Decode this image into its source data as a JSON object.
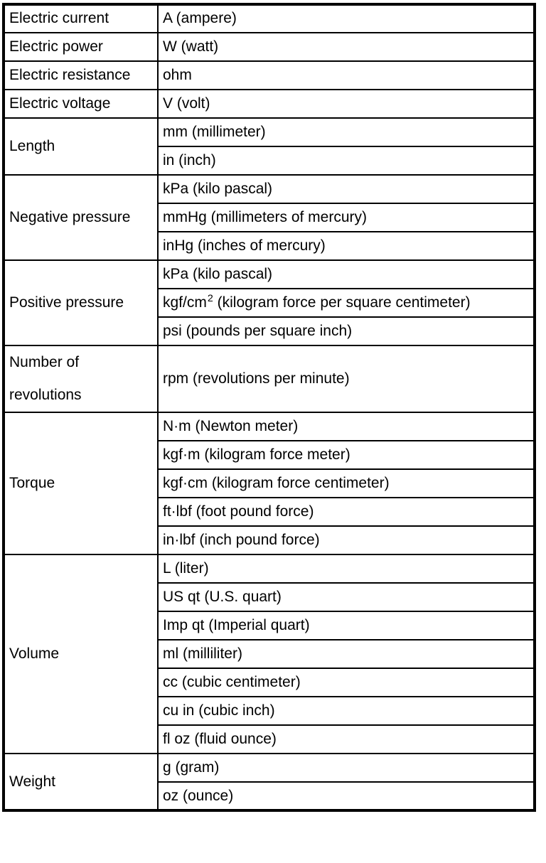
{
  "colors": {
    "background": "#ffffff",
    "text": "#000000",
    "border": "#000000"
  },
  "table": {
    "categories": [
      {
        "label": "Electric current",
        "units": [
          {
            "text": "A (ampere)"
          }
        ]
      },
      {
        "label": "Electric power",
        "units": [
          {
            "text": "W (watt)"
          }
        ]
      },
      {
        "label": "Electric resistance",
        "units": [
          {
            "text": "ohm"
          }
        ]
      },
      {
        "label": "Electric voltage",
        "units": [
          {
            "text": "V (volt)"
          }
        ]
      },
      {
        "label": "Length",
        "units": [
          {
            "text": "mm (millimeter)"
          },
          {
            "text": "in (inch)"
          }
        ]
      },
      {
        "label": "Negative pressure",
        "units": [
          {
            "text": "kPa (kilo pascal)"
          },
          {
            "text": "mmHg (millimeters of mercury)"
          },
          {
            "text": "inHg (inches of mercury)"
          }
        ]
      },
      {
        "label": "Positive pressure",
        "units": [
          {
            "text": "kPa (kilo pascal)"
          },
          {
            "base": "kgf/cm",
            "sup": "2",
            "rest": " (kilogram force per square centimeter)"
          },
          {
            "text": "psi (pounds per square inch)"
          }
        ]
      },
      {
        "label": "Number of revolutions",
        "tall": true,
        "units": [
          {
            "text": "rpm (revolutions per minute)"
          }
        ]
      },
      {
        "label": "Torque",
        "units": [
          {
            "text": "N·m (Newton meter)"
          },
          {
            "text": "kgf·m (kilogram force meter)"
          },
          {
            "text": "kgf·cm (kilogram force centimeter)"
          },
          {
            "text": "ft·lbf (foot pound force)"
          },
          {
            "text": "in·lbf (inch pound force)"
          }
        ]
      },
      {
        "label": "Volume",
        "units": [
          {
            "text": "L (liter)"
          },
          {
            "text": "US qt (U.S. quart)"
          },
          {
            "text": "Imp qt (Imperial quart)"
          },
          {
            "text": "ml (milliliter)"
          },
          {
            "text": "cc (cubic centimeter)"
          },
          {
            "text": "cu in (cubic inch)"
          },
          {
            "text": "fl oz (fluid ounce)"
          }
        ]
      },
      {
        "label": "Weight",
        "units": [
          {
            "text": "g (gram)"
          },
          {
            "text": "oz (ounce)"
          }
        ]
      }
    ]
  }
}
